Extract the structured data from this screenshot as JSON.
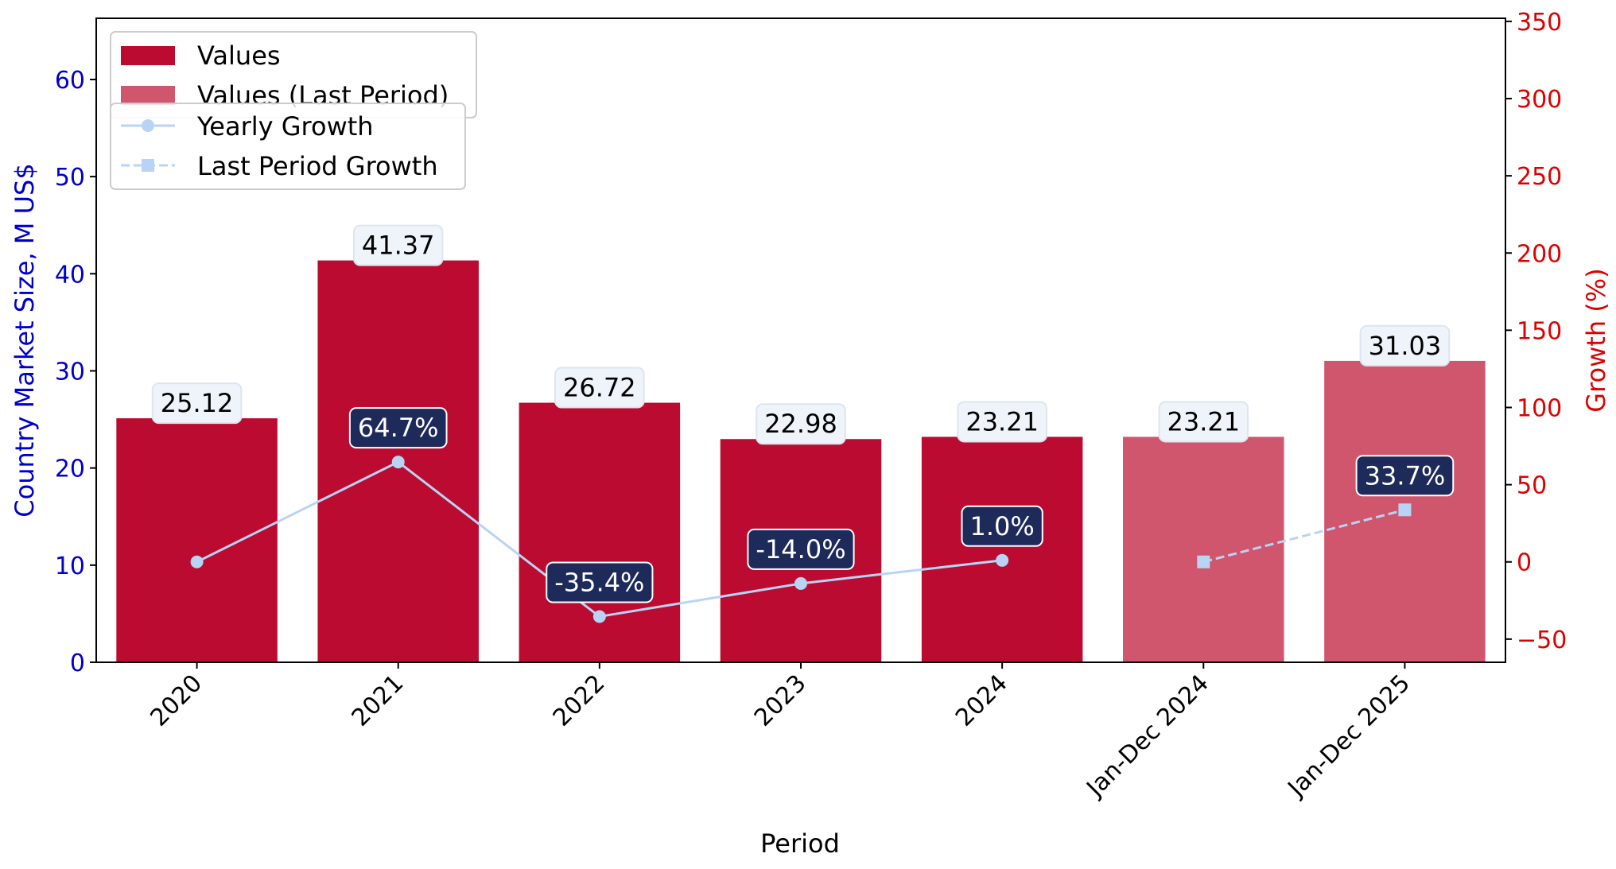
{
  "chart_data": {
    "type": "bar",
    "categories": [
      "2020",
      "2021",
      "2022",
      "2023",
      "2024",
      "Jan-Dec 2024",
      "Jan-Dec 2025"
    ],
    "series": [
      {
        "name": "Values",
        "values": [
          25.12,
          41.37,
          26.72,
          22.98,
          23.21,
          null,
          null
        ],
        "labels": [
          "25.12",
          "41.37",
          "26.72",
          "22.98",
          "23.21",
          "",
          ""
        ],
        "color": "#bb0b30"
      },
      {
        "name": "Values (Last Period)",
        "values": [
          null,
          null,
          null,
          null,
          null,
          23.21,
          31.03
        ],
        "labels": [
          "",
          "",
          "",
          "",
          "",
          "23.21",
          "31.03"
        ],
        "color": "#d0566d"
      },
      {
        "name": "Yearly Growth",
        "type": "line",
        "axis": "right",
        "values": [
          0,
          64.7,
          -35.4,
          -14.0,
          1.0,
          null,
          null
        ],
        "labels": [
          "",
          "64.7%",
          "-35.4%",
          "-14.0%",
          "1.0%",
          "",
          ""
        ],
        "color": "#b8d4f5",
        "marker": "circle",
        "dash": "solid"
      },
      {
        "name": "Last Period Growth",
        "type": "line",
        "axis": "right",
        "values": [
          null,
          null,
          null,
          null,
          null,
          0,
          33.7
        ],
        "labels": [
          "",
          "",
          "",
          "",
          "",
          "",
          "33.7%"
        ],
        "color": "#b8d4f5",
        "marker": "square",
        "dash": "dashed"
      }
    ],
    "xlabel": "Period",
    "ylabel": "Country Market Size, M US$",
    "y2label": "Growth (%)",
    "ylim": [
      0,
      66.3
    ],
    "y2lim": [
      -65,
      352
    ],
    "yticks": [
      0,
      10,
      20,
      30,
      40,
      50,
      60
    ],
    "y2ticks": [
      -50,
      0,
      50,
      100,
      150,
      200,
      250,
      300,
      350
    ],
    "legend_placement": "top-left",
    "grid": false,
    "colors": {
      "left_axis": "#0000cc",
      "right_axis": "#dd0000",
      "label_box_dark": "#1e2a5a",
      "label_box_light": "#eef4fa"
    }
  }
}
